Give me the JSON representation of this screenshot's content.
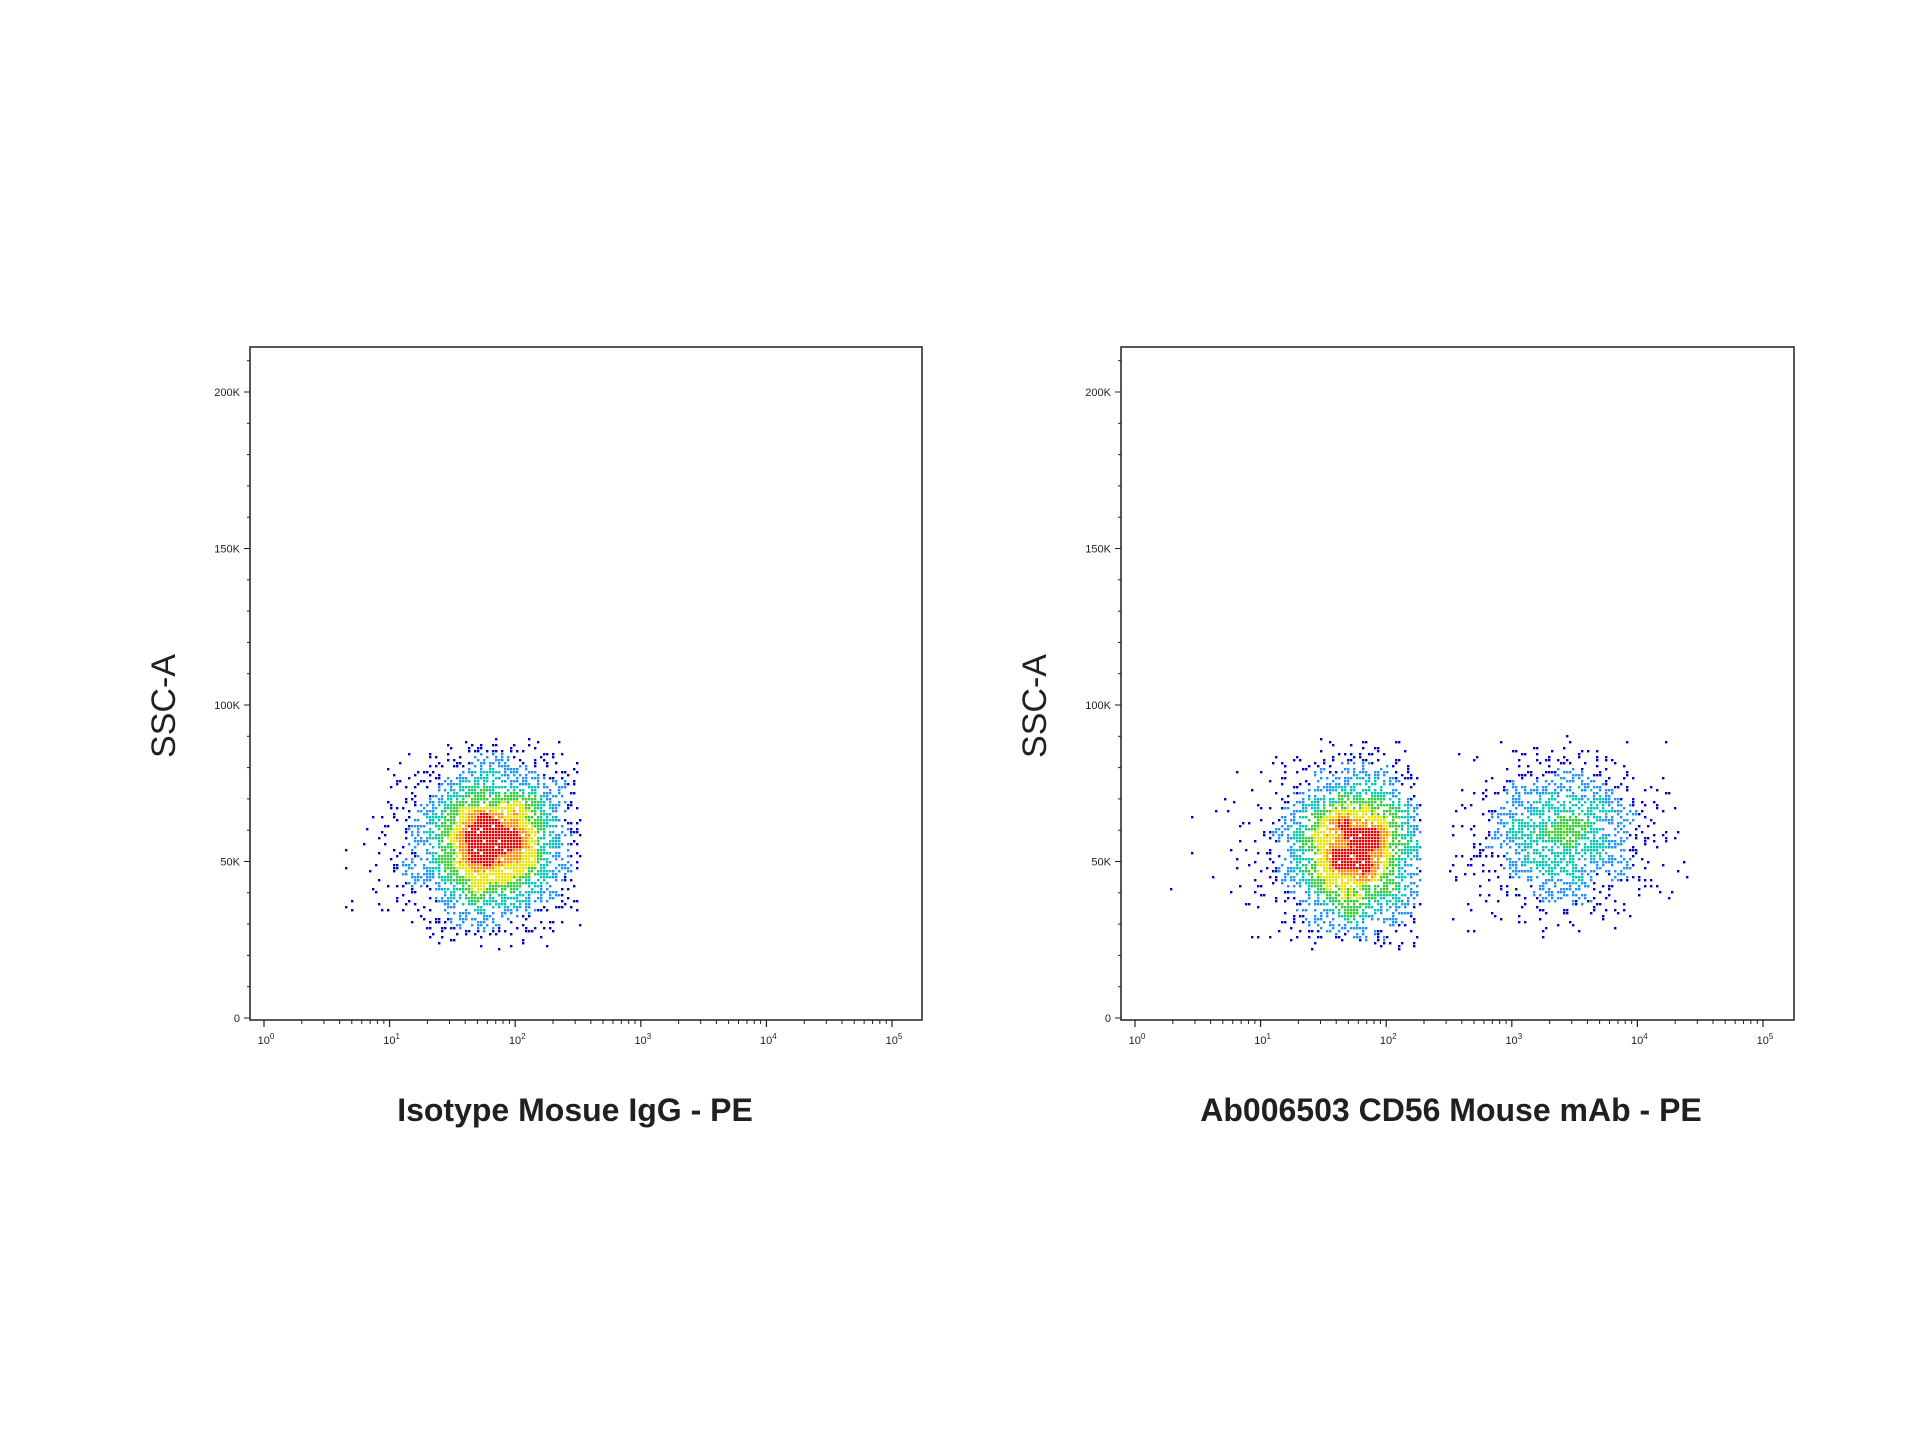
{
  "chart_data": [
    {
      "type": "scatter",
      "plot_kind": "flow cytometry density dot plot",
      "xlabel": "Isotype Mosue IgG - PE",
      "ylabel": "SSC-A",
      "x_scale": "log",
      "xlim": [
        1,
        150000
      ],
      "ylim": [
        -2000,
        215000
      ],
      "x_ticks": [
        {
          "value": 1,
          "base": "10",
          "exp": "0"
        },
        {
          "value": 10,
          "base": "10",
          "exp": "1"
        },
        {
          "value": 100,
          "base": "10",
          "exp": "2"
        },
        {
          "value": 1000,
          "base": "10",
          "exp": "3"
        },
        {
          "value": 10000,
          "base": "10",
          "exp": "4"
        },
        {
          "value": 100000,
          "base": "10",
          "exp": "5"
        }
      ],
      "y_ticks": [
        {
          "value": 0,
          "label": "0"
        },
        {
          "value": 50000,
          "label": "50K"
        },
        {
          "value": 100000,
          "label": "100K"
        },
        {
          "value": 150000,
          "label": "150K"
        },
        {
          "value": 200000,
          "label": "200K"
        }
      ],
      "grid": false,
      "color_scale": [
        "#0000c8",
        "#1e90ff",
        "#00c8b4",
        "#32cd32",
        "#e6e600",
        "#ff8c00",
        "#e60000"
      ],
      "populations": [
        {
          "x_center": 65,
          "x_log_sd": 0.3,
          "y_center": 56000,
          "y_sd": 13000,
          "x_min": 4,
          "x_max": 330,
          "y_min": 22000,
          "y_max": 89000,
          "events": 3600
        }
      ]
    },
    {
      "type": "scatter",
      "plot_kind": "flow cytometry density dot plot",
      "xlabel": "Ab006503 CD56 Mouse mAb - PE",
      "ylabel": "SSC-A",
      "x_scale": "log",
      "xlim": [
        1,
        150000
      ],
      "ylim": [
        -2000,
        215000
      ],
      "x_ticks": [
        {
          "value": 1,
          "base": "10",
          "exp": "0"
        },
        {
          "value": 10,
          "base": "10",
          "exp": "1"
        },
        {
          "value": 100,
          "base": "10",
          "exp": "2"
        },
        {
          "value": 1000,
          "base": "10",
          "exp": "3"
        },
        {
          "value": 10000,
          "base": "10",
          "exp": "4"
        },
        {
          "value": 100000,
          "base": "10",
          "exp": "5"
        }
      ],
      "y_ticks": [
        {
          "value": 0,
          "label": "0"
        },
        {
          "value": 50000,
          "label": "50K"
        },
        {
          "value": 100000,
          "label": "100K"
        },
        {
          "value": 150000,
          "label": "150K"
        },
        {
          "value": 200000,
          "label": "200K"
        }
      ],
      "grid": false,
      "color_scale": [
        "#0000c8",
        "#1e90ff",
        "#00c8b4",
        "#32cd32",
        "#e6e600",
        "#ff8c00",
        "#e60000"
      ],
      "populations": [
        {
          "x_center": 55,
          "x_log_sd": 0.28,
          "y_center": 53000,
          "y_sd": 13500,
          "x_min": 1.5,
          "x_max": 190,
          "y_min": 22000,
          "y_max": 89000,
          "events": 3000
        },
        {
          "x_center": 2600,
          "x_log_sd": 0.32,
          "y_center": 59000,
          "y_sd": 12000,
          "x_min": 300,
          "x_max": 25000,
          "y_min": 24000,
          "y_max": 90000,
          "events": 1500
        }
      ]
    }
  ]
}
